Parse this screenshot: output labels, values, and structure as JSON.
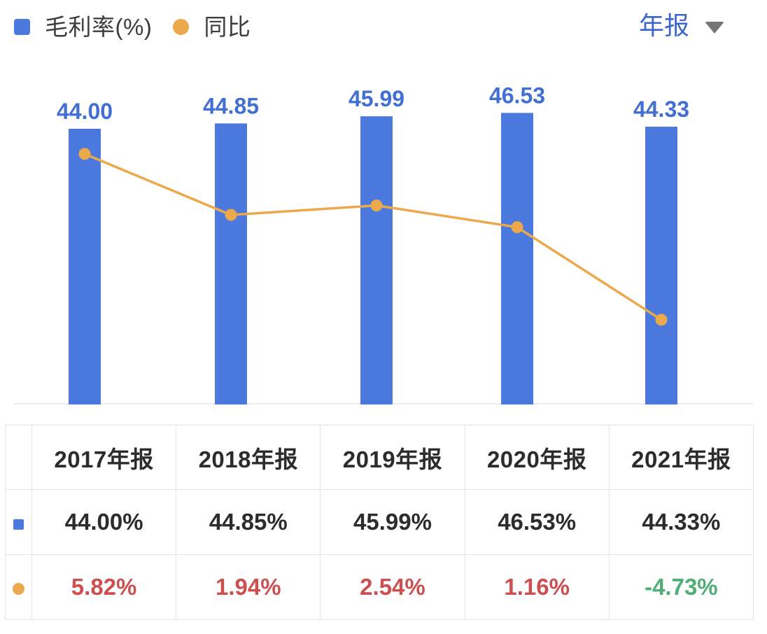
{
  "legend": {
    "items": [
      {
        "name": "毛利率(%)",
        "marker": "square-icon",
        "color": "#4b79dd"
      },
      {
        "name": "同比",
        "marker": "circle-icon",
        "color": "#eba94b"
      }
    ]
  },
  "period_selector": {
    "label": "年报",
    "icon": "caret-down-icon"
  },
  "chart_data": {
    "type": "combo",
    "categories": [
      "2017年报",
      "2018年报",
      "2019年报",
      "2020年报",
      "2021年报"
    ],
    "series": [
      {
        "name": "毛利率(%)",
        "type": "bar",
        "color": "#4b79dd",
        "unit": "%",
        "values": [
          44.0,
          44.85,
          45.99,
          46.53,
          44.33
        ],
        "value_labels": [
          "44.00",
          "44.85",
          "45.99",
          "46.53",
          "44.33"
        ]
      },
      {
        "name": "同比",
        "type": "line",
        "color": "#eba94b",
        "unit": "%",
        "values": [
          5.82,
          1.94,
          2.54,
          1.16,
          -4.73
        ]
      }
    ],
    "bar_baseline_value": 0,
    "axes": "hidden",
    "grid": false,
    "legend_position": "top-left",
    "value_labels_shown": true
  },
  "table": {
    "corner_header": "",
    "columns": [
      "2017年报",
      "2018年报",
      "2019年报",
      "2020年报",
      "2021年报"
    ],
    "rows": [
      {
        "marker": "square-icon",
        "marker_color": "#4b79dd",
        "cells": [
          {
            "text": "44.00%",
            "color": "#2c2c2c"
          },
          {
            "text": "44.85%",
            "color": "#2c2c2c"
          },
          {
            "text": "45.99%",
            "color": "#2c2c2c"
          },
          {
            "text": "46.53%",
            "color": "#2c2c2c"
          },
          {
            "text": "44.33%",
            "color": "#2c2c2c"
          }
        ]
      },
      {
        "marker": "circle-icon",
        "marker_color": "#eba94b",
        "cells": [
          {
            "text": "5.82%",
            "color": "#cd5050"
          },
          {
            "text": "1.94%",
            "color": "#cd5050"
          },
          {
            "text": "2.54%",
            "color": "#cd5050"
          },
          {
            "text": "1.16%",
            "color": "#cd5050"
          },
          {
            "text": "-4.73%",
            "color": "#4fae78"
          }
        ]
      }
    ]
  },
  "colors": {
    "bar_blue": "#4b79dd",
    "bar_label_blue": "#4170d2",
    "line_orange": "#eba94b",
    "selector_blue": "#3b66cb",
    "legend_text": "#3d3d3d",
    "table_text": "#2c2c2c",
    "negative_red": "#cd5050",
    "positive_green": "#4fae78",
    "table_border": "#e4e4e4",
    "baseline_gray": "#ebebeb"
  }
}
